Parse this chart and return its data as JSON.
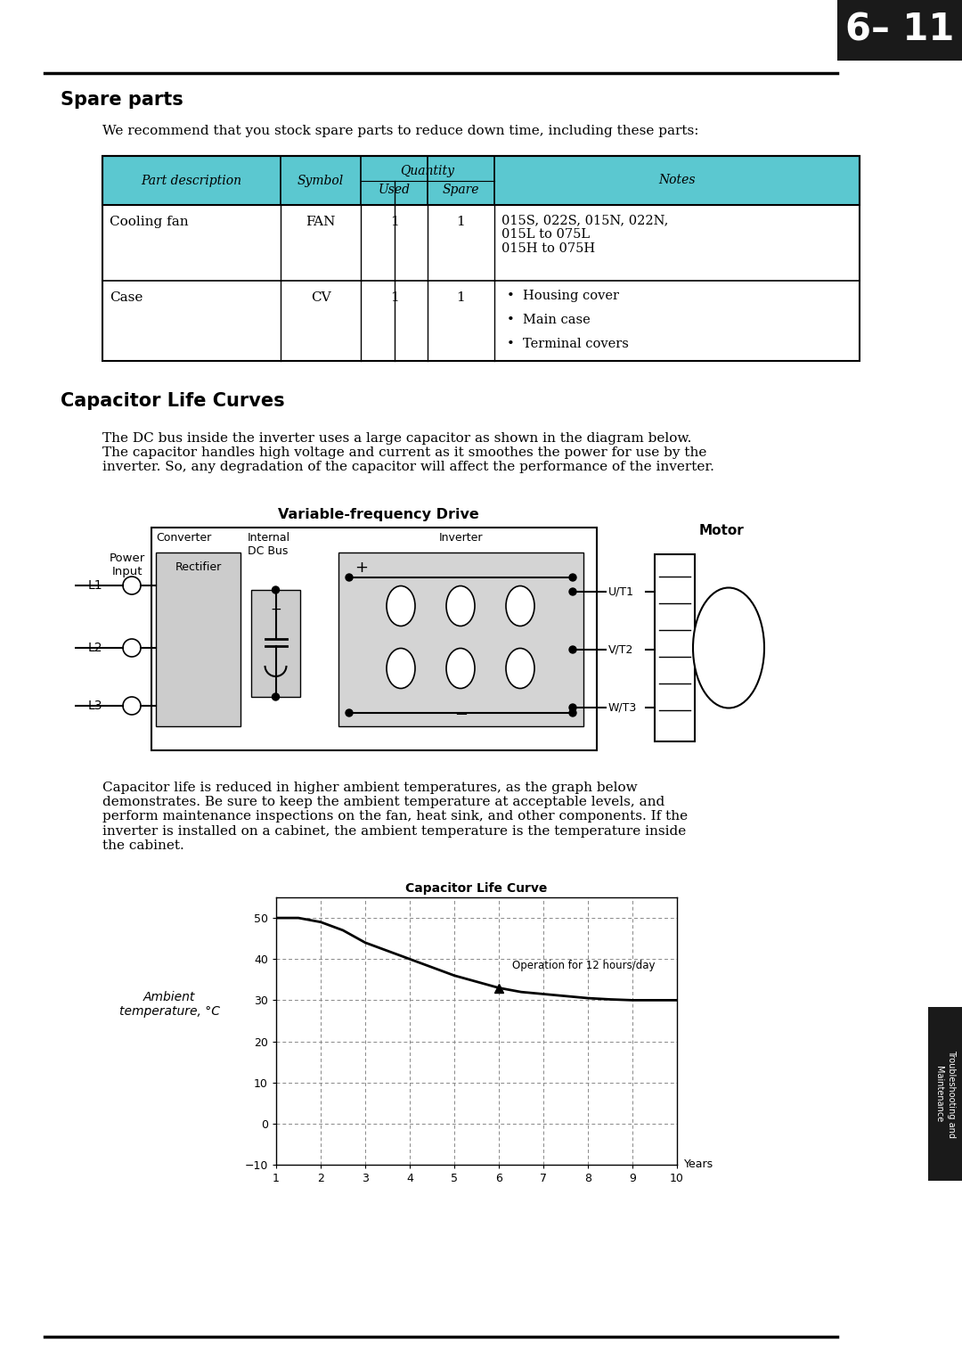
{
  "page_number": "6– 11",
  "section1_title": "Spare parts",
  "section1_intro": "We recommend that you stock spare parts to reduce down time, including these parts:",
  "table_header_bg": "#5BC8D0",
  "table_rows": [
    {
      "part": "Cooling fan",
      "symbol": "FAN",
      "used": "1",
      "spare": "1",
      "notes": "015S, 022S, 015N, 022N,\n015L to 075L\n015H to 075H"
    },
    {
      "part": "Case",
      "symbol": "CV",
      "used": "1",
      "spare": "1",
      "notes_bullets": [
        "Housing cover",
        "Main case",
        "Terminal covers"
      ]
    }
  ],
  "section2_title": "Capacitor Life Curves",
  "section2_para1": "The DC bus inside the inverter uses a large capacitor as shown in the diagram below.\nThe capacitor handles high voltage and current as it smoothes the power for use by the\ninverter. So, any degradation of the capacitor will affect the performance of the inverter.",
  "section2_para2": "Capacitor life is reduced in higher ambient temperatures, as the graph below\ndemonstrates. Be sure to keep the ambient temperature at acceptable levels, and\nperform maintenance inspections on the fan, heat sink, and other components. If the\ninverter is installed on a cabinet, the ambient temperature is the temperature inside\nthe cabinet.",
  "graph_title": "Capacitor Life Curve",
  "graph_xlabel": "Years",
  "graph_ylabel": "Ambient\ntemperature, °C",
  "graph_ylim": [
    -10,
    55
  ],
  "graph_xlim": [
    1,
    10
  ],
  "graph_yticks": [
    -10,
    0,
    10,
    20,
    30,
    40,
    50
  ],
  "graph_xticks": [
    1,
    2,
    3,
    4,
    5,
    6,
    7,
    8,
    9,
    10
  ],
  "graph_curve_x": [
    1.0,
    1.5,
    2.0,
    2.5,
    3.0,
    3.5,
    4.0,
    4.5,
    5.0,
    5.5,
    6.0,
    6.5,
    7.0,
    7.5,
    8.0,
    8.5,
    9.0,
    9.5,
    10.0
  ],
  "graph_curve_y": [
    50,
    50,
    49,
    47,
    44,
    42,
    40,
    38,
    36,
    34.5,
    33,
    32,
    31.5,
    31,
    30.5,
    30.2,
    30,
    30,
    30
  ],
  "graph_label": "Operation for 12 hours/day",
  "graph_bg_color": "#ffffff",
  "sidebar_text": "Troubleshooting and\nMaintenance",
  "sidebar_bg": "#1a1a1a",
  "teal": "#5BC8D0"
}
